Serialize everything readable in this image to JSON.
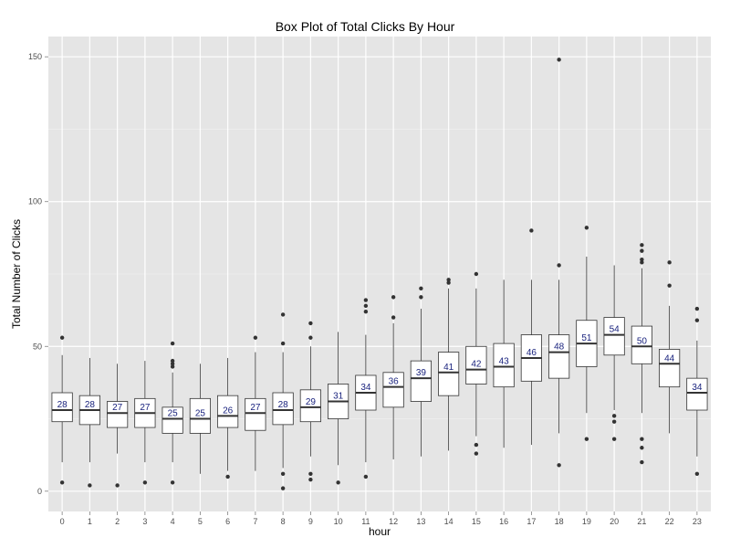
{
  "chart_data": {
    "type": "box",
    "title": "Box Plot of Total Clicks By Hour",
    "xlabel": "hour",
    "ylabel": "Total Number of Clicks",
    "ylim": [
      -7,
      157
    ],
    "yticks": [
      0,
      50,
      100,
      150
    ],
    "grid": true,
    "legend": "none",
    "colors": {
      "panel": "#e5e5e5",
      "grid": "#ffffff",
      "box_fill": "#ffffff",
      "box_line": "#333333",
      "median_label": "#1a237e"
    },
    "categories": [
      "0",
      "1",
      "2",
      "3",
      "4",
      "5",
      "6",
      "7",
      "8",
      "9",
      "10",
      "11",
      "12",
      "13",
      "14",
      "15",
      "16",
      "17",
      "18",
      "19",
      "20",
      "21",
      "22",
      "23"
    ],
    "boxes": [
      {
        "q1": 24,
        "median": 28,
        "q3": 34,
        "low": 10,
        "high": 47,
        "outliers": [
          3,
          53
        ],
        "label": "28"
      },
      {
        "q1": 23,
        "median": 28,
        "q3": 33,
        "low": 10,
        "high": 46,
        "outliers": [
          2
        ],
        "label": "28"
      },
      {
        "q1": 22,
        "median": 27,
        "q3": 31,
        "low": 13,
        "high": 44,
        "outliers": [
          2
        ],
        "label": "27"
      },
      {
        "q1": 22,
        "median": 27,
        "q3": 32,
        "low": 10,
        "high": 45,
        "outliers": [
          3
        ],
        "label": "27"
      },
      {
        "q1": 20,
        "median": 25,
        "q3": 29,
        "low": 10,
        "high": 41,
        "outliers": [
          3,
          43,
          44,
          45,
          51
        ],
        "label": "25"
      },
      {
        "q1": 20,
        "median": 25,
        "q3": 32,
        "low": 6,
        "high": 44,
        "outliers": [],
        "label": "25"
      },
      {
        "q1": 22,
        "median": 26,
        "q3": 33,
        "low": 7,
        "high": 46,
        "outliers": [
          5
        ],
        "label": "26"
      },
      {
        "q1": 21,
        "median": 27,
        "q3": 32,
        "low": 7,
        "high": 48,
        "outliers": [
          53
        ],
        "label": "27"
      },
      {
        "q1": 23,
        "median": 28,
        "q3": 34,
        "low": 8,
        "high": 48,
        "outliers": [
          1,
          6,
          51,
          61
        ],
        "label": "28"
      },
      {
        "q1": 24,
        "median": 29,
        "q3": 35,
        "low": 12,
        "high": 50,
        "outliers": [
          4,
          6,
          53,
          58
        ],
        "label": "29"
      },
      {
        "q1": 25,
        "median": 31,
        "q3": 37,
        "low": 9,
        "high": 55,
        "outliers": [
          3
        ],
        "label": "31"
      },
      {
        "q1": 28,
        "median": 34,
        "q3": 40,
        "low": 10,
        "high": 54,
        "outliers": [
          5,
          62,
          64,
          66
        ],
        "label": "34"
      },
      {
        "q1": 29,
        "median": 36,
        "q3": 41,
        "low": 11,
        "high": 58,
        "outliers": [
          60,
          67
        ],
        "label": "36"
      },
      {
        "q1": 31,
        "median": 39,
        "q3": 45,
        "low": 12,
        "high": 63,
        "outliers": [
          67,
          70
        ],
        "label": "39"
      },
      {
        "q1": 33,
        "median": 41,
        "q3": 48,
        "low": 14,
        "high": 70,
        "outliers": [
          72,
          73
        ],
        "label": "41"
      },
      {
        "q1": 37,
        "median": 42,
        "q3": 50,
        "low": 19,
        "high": 70,
        "outliers": [
          13,
          16,
          75
        ],
        "label": "42"
      },
      {
        "q1": 36,
        "median": 43,
        "q3": 51,
        "low": 15,
        "high": 73,
        "outliers": [],
        "label": "43"
      },
      {
        "q1": 38,
        "median": 46,
        "q3": 54,
        "low": 16,
        "high": 73,
        "outliers": [
          90
        ],
        "label": "46"
      },
      {
        "q1": 39,
        "median": 48,
        "q3": 54,
        "low": 20,
        "high": 73,
        "outliers": [
          9,
          78,
          149
        ],
        "label": "48"
      },
      {
        "q1": 43,
        "median": 51,
        "q3": 59,
        "low": 27,
        "high": 81,
        "outliers": [
          18,
          91
        ],
        "label": "51"
      },
      {
        "q1": 47,
        "median": 54,
        "q3": 60,
        "low": 28,
        "high": 78,
        "outliers": [
          18,
          24,
          26
        ],
        "label": "54"
      },
      {
        "q1": 44,
        "median": 50,
        "q3": 57,
        "low": 27,
        "high": 77,
        "outliers": [
          10,
          15,
          18,
          79,
          80,
          83,
          85
        ],
        "label": "50"
      },
      {
        "q1": 36,
        "median": 44,
        "q3": 49,
        "low": 20,
        "high": 64,
        "outliers": [
          71,
          79
        ],
        "label": "44"
      },
      {
        "q1": 28,
        "median": 34,
        "q3": 39,
        "low": 12,
        "high": 52,
        "outliers": [
          6,
          59,
          63
        ],
        "label": "34"
      }
    ]
  }
}
